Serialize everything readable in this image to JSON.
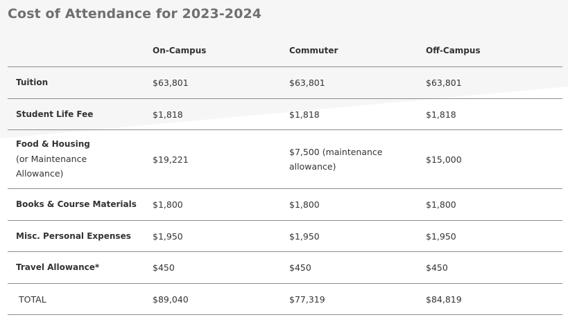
{
  "title": "Cost of Attendance for 2023-2024",
  "table": {
    "columns": [
      "On-Campus",
      "Commuter",
      "Off-Campus"
    ],
    "rows": [
      {
        "label": "Tuition",
        "cells": [
          "$63,801",
          "$63,801",
          "$63,801"
        ]
      },
      {
        "label": "Student Life Fee",
        "cells": [
          "$1,818",
          "$1,818",
          "$1,818"
        ]
      },
      {
        "label": "Food & Housing",
        "note": "(or Maintenance Allowance)",
        "cells": [
          "$19,221",
          "$7,500 (maintenance allowance)",
          "$15,000"
        ]
      },
      {
        "label": "Books & Course Materials",
        "cells": [
          "$1,800",
          "$1,800",
          "$1,800"
        ]
      },
      {
        "label": "Misc. Personal Expenses",
        "cells": [
          "$1,950",
          "$1,950",
          "$1,950"
        ]
      },
      {
        "label": "Travel Allowance*",
        "cells": [
          "$450",
          "$450",
          "$450"
        ]
      },
      {
        "label": "TOTAL",
        "cells": [
          "$89,040",
          "$77,319",
          "$84,819"
        ]
      }
    ]
  }
}
